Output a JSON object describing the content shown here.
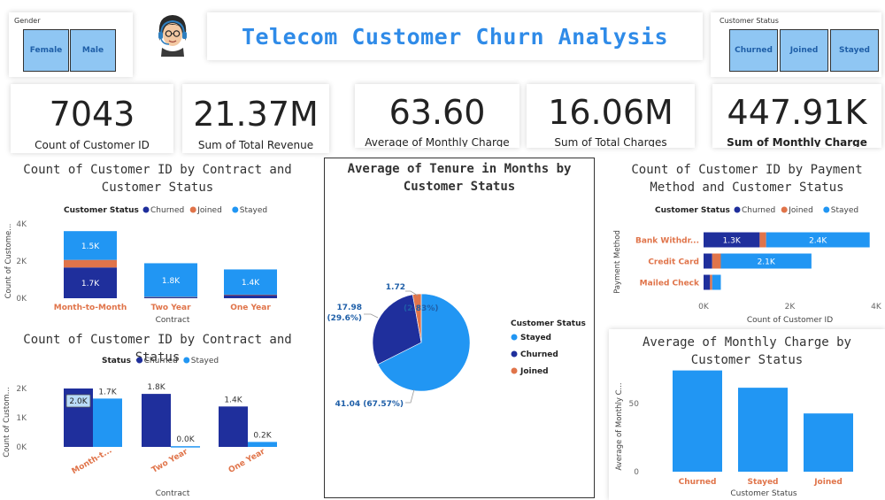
{
  "dashboard": {
    "title": "Telecom Customer Churn Analysis",
    "avatar_icon": "support-agent-avatar-icon"
  },
  "slicers": {
    "gender": {
      "label": "Gender",
      "options": [
        "Female",
        "Male"
      ]
    },
    "status": {
      "label": "Customer Status",
      "options": [
        "Churned",
        "Joined",
        "Stayed"
      ]
    }
  },
  "kpis": [
    {
      "value": "7043",
      "label": "Count of Customer ID"
    },
    {
      "value": "21.37M",
      "label": "Sum of Total Revenue"
    },
    {
      "value": "63.60",
      "label": "Average of Monthly Charge"
    },
    {
      "value": "16.06M",
      "label": "Sum of Total Charges"
    },
    {
      "value": "447.91K",
      "label": "Sum of Monthly Charge"
    }
  ],
  "colors": {
    "churned": "#1f2f9c",
    "joined": "#e0744a",
    "stayed": "#2196f3",
    "category_label": "#e0744a"
  },
  "chart_data": [
    {
      "type": "bar",
      "subtype": "stacked-column",
      "title": "Count of Customer ID by Contract and Customer Status",
      "legend_title": "Customer Status",
      "legend_position": "top",
      "xlabel": "Contract",
      "ylabel": "Count of Custome...",
      "categories": [
        "Month-to-Month",
        "Two Year",
        "One Year"
      ],
      "ylim": [
        0,
        4000
      ],
      "yticks": [
        "0K",
        "2K",
        "4K"
      ],
      "series": [
        {
          "name": "Churned",
          "values": [
            1655,
            48,
            166
          ],
          "labels": [
            "1.7K",
            "",
            ""
          ]
        },
        {
          "name": "Joined",
          "values": [
            408,
            20,
            26
          ],
          "labels": [
            "",
            "",
            ""
          ]
        },
        {
          "name": "Stayed",
          "values": [
            1547,
            1815,
            1358
          ],
          "labels": [
            "1.5K",
            "1.8K",
            "1.4K"
          ]
        }
      ]
    },
    {
      "type": "bar",
      "subtype": "clustered-column",
      "title": "Count of Customer ID by Contract and Status",
      "legend_title": "Status",
      "legend_position": "top",
      "xlabel": "Contract",
      "ylabel": "Count of Custom...",
      "categories": [
        "Month-t...",
        "Two Year",
        "One Year"
      ],
      "ylim": [
        0,
        2000
      ],
      "yticks": [
        "0K",
        "1K",
        "2K"
      ],
      "series": [
        {
          "name": "Churned",
          "values": [
            2000,
            1815,
            1384
          ],
          "labels": [
            "2.0K",
            "1.8K",
            "1.4K"
          ]
        },
        {
          "name": "Stayed",
          "values": [
            1655,
            25,
            170
          ],
          "labels": [
            "1.7K",
            "0.0K",
            "0.2K"
          ]
        }
      ]
    },
    {
      "type": "pie",
      "title": "Average of Tenure in Months by Customer Status",
      "legend_title": "Customer Status",
      "legend_position": "right",
      "series": [
        {
          "name": "Stayed",
          "value": 41.04,
          "label": "41.04 (67.57%)"
        },
        {
          "name": "Churned",
          "value": 17.98,
          "label": "17.98 (29.6%)",
          "label_line1": "17.98",
          "label_line2": "(29.6%)"
        },
        {
          "name": "Joined",
          "value": 1.72,
          "label": "1.72 (2.83%)",
          "label_line1": "1.72",
          "label_line2": "(2.83%)"
        }
      ]
    },
    {
      "type": "bar",
      "subtype": "stacked-bar",
      "title": "Count of Customer ID by Payment Method and Customer Status",
      "legend_title": "Customer Status",
      "legend_position": "top",
      "xlabel": "Count of Customer ID",
      "ylabel": "Payment Method",
      "categories": [
        "Bank Withdr...",
        "Credit Card",
        "Mailed Check"
      ],
      "xlim": [
        0,
        4000
      ],
      "xticks": [
        "0K",
        "2K",
        "4K"
      ],
      "series": [
        {
          "name": "Churned",
          "values": [
            1300,
            200,
            150
          ],
          "labels": [
            "1.3K",
            "",
            ""
          ]
        },
        {
          "name": "Joined",
          "values": [
            150,
            200,
            50
          ],
          "labels": [
            "",
            "",
            ""
          ]
        },
        {
          "name": "Stayed",
          "values": [
            2400,
            2100,
            200
          ],
          "labels": [
            "2.4K",
            "2.1K",
            ""
          ]
        }
      ]
    },
    {
      "type": "bar",
      "subtype": "column",
      "title": "Average of Monthly Charge by Customer Status",
      "xlabel": "Customer Status",
      "ylabel": "Average of Monthly C...",
      "categories": [
        "Churned",
        "Stayed",
        "Joined"
      ],
      "values": [
        74.4,
        61.7,
        42.8
      ],
      "ylim": [
        0,
        80
      ],
      "yticks": [
        "0",
        "50"
      ]
    }
  ]
}
